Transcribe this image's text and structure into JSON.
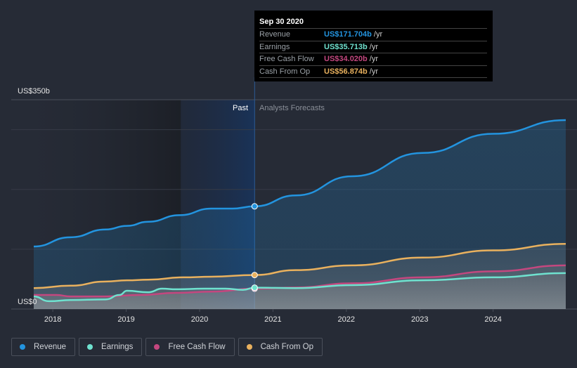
{
  "tooltip": {
    "date": "Sep 30 2020",
    "rows": [
      {
        "label": "Revenue",
        "value": "US$171.704b",
        "unit": "/yr",
        "color": "#2394df"
      },
      {
        "label": "Earnings",
        "value": "US$35.713b",
        "unit": "/yr",
        "color": "#6fe2cf"
      },
      {
        "label": "Free Cash Flow",
        "value": "US$34.020b",
        "unit": "/yr",
        "color": "#c4477f"
      },
      {
        "label": "Cash From Op",
        "value": "US$56.874b",
        "unit": "/yr",
        "color": "#e9b15e"
      }
    ]
  },
  "legend": [
    {
      "label": "Revenue",
      "color": "#2394df"
    },
    {
      "label": "Earnings",
      "color": "#6fe2cf"
    },
    {
      "label": "Free Cash Flow",
      "color": "#c4477f"
    },
    {
      "label": "Cash From Op",
      "color": "#e9b15e"
    }
  ],
  "chart_data": {
    "type": "area",
    "title": "",
    "xlabel": "",
    "ylabel": "",
    "ylim": [
      0,
      350
    ],
    "xlim": [
      2017.74,
      2024.99
    ],
    "y_tick_labels": [
      "US$0",
      "US$350b"
    ],
    "x_ticks": [
      2018,
      2019,
      2020,
      2021,
      2022,
      2023,
      2024
    ],
    "x_tick_labels": [
      "2018",
      "2019",
      "2020",
      "2021",
      "2022",
      "2023",
      "2024"
    ],
    "divider_x": 2020.75,
    "past_label": "Past",
    "forecast_label": "Analysts Forecasts",
    "grid": true,
    "legend_position": "bottom-left",
    "series": [
      {
        "name": "Revenue",
        "color": "#2394df",
        "x": [
          2017.74,
          2018.24,
          2018.72,
          2019.01,
          2019.3,
          2019.73,
          2020.16,
          2020.45,
          2020.75,
          2021.31,
          2022.08,
          2023.04,
          2024.0,
          2024.99
        ],
        "y": [
          104.6,
          120,
          133,
          139,
          146,
          157,
          168,
          168,
          171.7,
          190,
          222,
          261,
          293,
          316
        ]
      },
      {
        "name": "Cash From Op",
        "color": "#e9b15e",
        "x": [
          2017.74,
          2018.24,
          2018.72,
          2019.01,
          2019.3,
          2019.78,
          2020.16,
          2020.75,
          2021.31,
          2022.08,
          2023.04,
          2024.0,
          2024.99
        ],
        "y": [
          35,
          39,
          46,
          48,
          49,
          53,
          54,
          56.874,
          65,
          73,
          86,
          98,
          109
        ]
      },
      {
        "name": "Free Cash Flow",
        "color": "#c4477f",
        "x": [
          2017.74,
          2018.05,
          2018.24,
          2018.72,
          2019.2,
          2019.68,
          2020.16,
          2020.75,
          2021.31,
          2022.08,
          2023.04,
          2024.0,
          2024.99
        ],
        "y": [
          23.5,
          23.5,
          21,
          21,
          23.5,
          27,
          29,
          34.02,
          36,
          43,
          53,
          63,
          73
        ]
      },
      {
        "name": "Earnings",
        "color": "#6fe2cf",
        "x": [
          2017.74,
          2017.95,
          2018.24,
          2018.72,
          2018.91,
          2019.01,
          2019.3,
          2019.49,
          2019.68,
          2020.06,
          2020.35,
          2020.59,
          2020.75,
          2021.31,
          2022.08,
          2023.04,
          2024.0,
          2024.99
        ],
        "y": [
          21,
          13,
          15,
          16,
          23.5,
          30.5,
          28,
          34,
          33,
          34,
          34,
          32,
          35.713,
          35,
          40,
          48,
          53,
          60
        ]
      }
    ]
  }
}
